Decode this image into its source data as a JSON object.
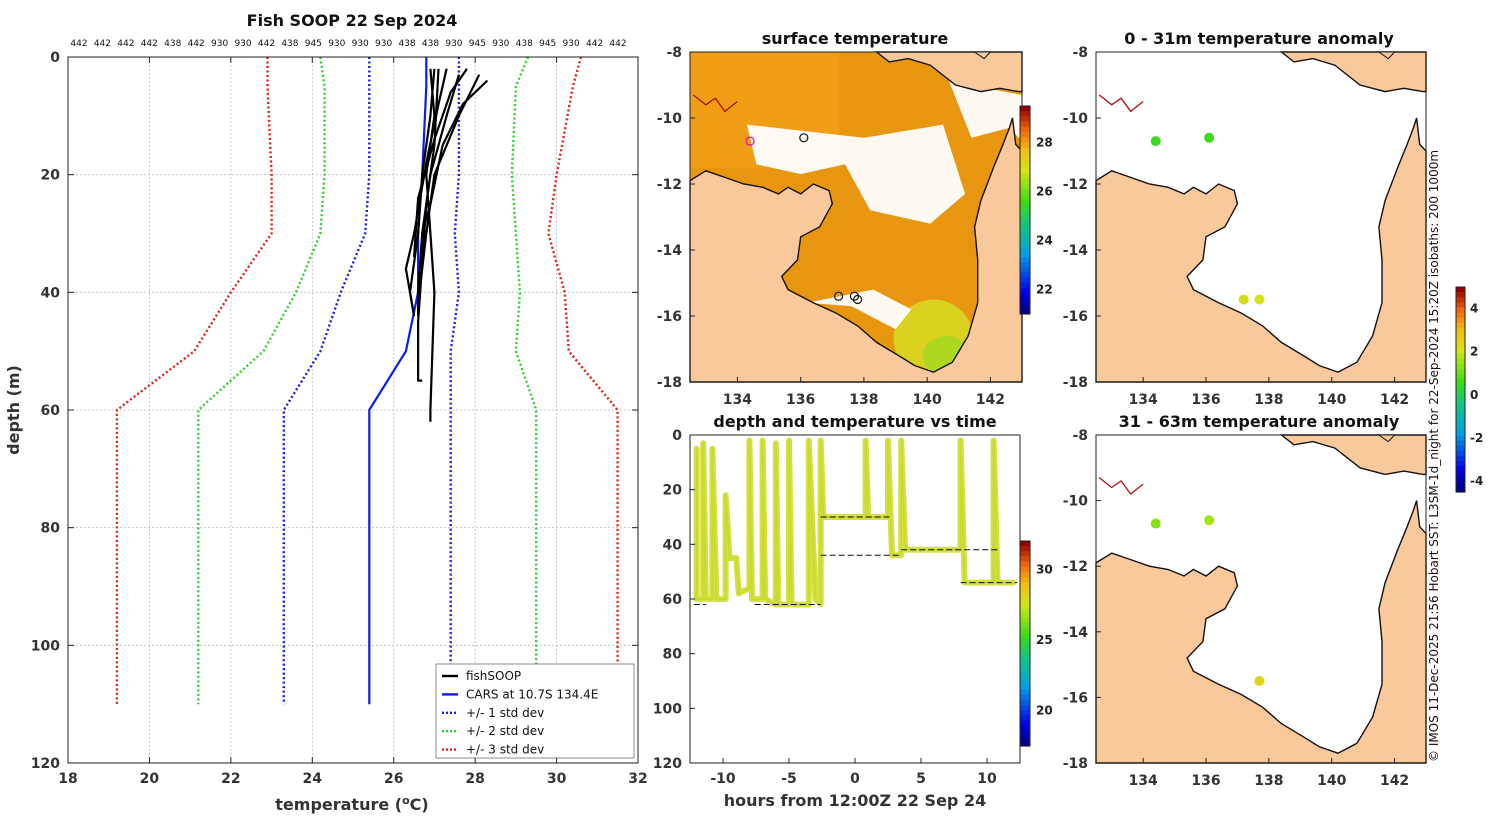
{
  "side_note": "© IMOS 11-Dec-2025 21:56 Hobart SST: L3SM-1d_night for 22-Sep-2024 15:20Z isobaths: 200  1000m",
  "colors": {
    "fish": "#000000",
    "cars": "#0a1eea",
    "std1": "#1a1ae0",
    "std2": "#28d428",
    "std3": "#e02010",
    "land": "#f9c89b",
    "grid": "#bbbbbb"
  },
  "chart_data": [
    {
      "id": "profile",
      "type": "line",
      "title": "Fish SOOP 22 Sep 2024",
      "xlabel": "temperature (",
      "xlabel_sup": "o",
      "xlabel_tail": "C)",
      "ylabel": "depth (m)",
      "xlim": [
        18,
        32
      ],
      "ylim": [
        0,
        120
      ],
      "y_reversed": true,
      "xticks": [
        18,
        20,
        22,
        24,
        26,
        28,
        30,
        32
      ],
      "yticks": [
        0,
        20,
        40,
        60,
        80,
        100,
        120
      ],
      "top_labels": [
        "442",
        "442",
        "442",
        "442",
        "438",
        "442",
        "930",
        "930",
        "442",
        "438",
        "945",
        "930",
        "930",
        "930",
        "438",
        "438",
        "930",
        "945",
        "930",
        "438",
        "945",
        "930",
        "442",
        "442"
      ],
      "legend": [
        {
          "label": "fishSOOP",
          "style": "fish"
        },
        {
          "label": "CARS at 10.7S 134.4E",
          "style": "cars"
        },
        {
          "label": "+/- 1 std dev",
          "style": "std1"
        },
        {
          "label": "+/- 2 std dev",
          "style": "std2"
        },
        {
          "label": "+/- 3 std dev",
          "style": "std3"
        }
      ],
      "series": [
        {
          "name": "CARS mean",
          "style": "cars",
          "points": [
            [
              26.8,
              0
            ],
            [
              26.8,
              5
            ],
            [
              26.7,
              20
            ],
            [
              26.6,
              30
            ],
            [
              26.6,
              40
            ],
            [
              26.3,
              50
            ],
            [
              25.4,
              60
            ],
            [
              25.4,
              110
            ]
          ]
        },
        {
          "name": "-1 std",
          "style": "std1",
          "points": [
            [
              25.4,
              0
            ],
            [
              25.4,
              20
            ],
            [
              25.3,
              30
            ],
            [
              24.7,
              40
            ],
            [
              24.2,
              50
            ],
            [
              23.3,
              60
            ],
            [
              23.3,
              110
            ]
          ]
        },
        {
          "name": "+1 std",
          "style": "std1",
          "points": [
            [
              27.6,
              0
            ],
            [
              27.6,
              20
            ],
            [
              27.5,
              30
            ],
            [
              27.6,
              40
            ],
            [
              27.4,
              50
            ],
            [
              27.4,
              60
            ],
            [
              27.4,
              110
            ]
          ]
        },
        {
          "name": "-2 std",
          "style": "std2",
          "points": [
            [
              24.2,
              0
            ],
            [
              24.3,
              5
            ],
            [
              24.3,
              20
            ],
            [
              24.2,
              30
            ],
            [
              23.6,
              40
            ],
            [
              22.8,
              50
            ],
            [
              21.2,
              60
            ],
            [
              21.2,
              110
            ]
          ]
        },
        {
          "name": "+2 std",
          "style": "std2",
          "points": [
            [
              29.3,
              0
            ],
            [
              29.0,
              5
            ],
            [
              28.9,
              20
            ],
            [
              29.0,
              30
            ],
            [
              29.1,
              40
            ],
            [
              29.0,
              50
            ],
            [
              29.5,
              60
            ],
            [
              29.5,
              110
            ]
          ]
        },
        {
          "name": "-3 std",
          "style": "std3",
          "points": [
            [
              22.9,
              0
            ],
            [
              22.9,
              5
            ],
            [
              23.0,
              20
            ],
            [
              23.0,
              30
            ],
            [
              22.0,
              40
            ],
            [
              21.1,
              50
            ],
            [
              19.2,
              60
            ],
            [
              19.2,
              110
            ]
          ]
        },
        {
          "name": "+3 std",
          "style": "std3",
          "points": [
            [
              30.6,
              0
            ],
            [
              30.4,
              5
            ],
            [
              30.0,
              20
            ],
            [
              29.8,
              30
            ],
            [
              30.2,
              40
            ],
            [
              30.3,
              50
            ],
            [
              31.5,
              60
            ],
            [
              31.5,
              110
            ]
          ]
        },
        {
          "name": "fishSOOP 1",
          "style": "fish",
          "points": [
            [
              27.0,
              2
            ],
            [
              26.9,
              10
            ],
            [
              26.7,
              20
            ],
            [
              26.6,
              30
            ],
            [
              26.4,
              40
            ],
            [
              26.5,
              44
            ]
          ]
        },
        {
          "name": "fishSOOP 2",
          "style": "fish",
          "points": [
            [
              27.6,
              3
            ],
            [
              27.3,
              10
            ],
            [
              26.9,
              20
            ],
            [
              26.7,
              30
            ],
            [
              26.6,
              40
            ],
            [
              26.6,
              44
            ]
          ]
        },
        {
          "name": "fishSOOP 3",
          "style": "fish",
          "points": [
            [
              28.1,
              3
            ],
            [
              27.6,
              10
            ],
            [
              27.0,
              20
            ],
            [
              26.8,
              30
            ],
            [
              26.6,
              42
            ]
          ]
        },
        {
          "name": "fishSOOP 4",
          "style": "fish",
          "points": [
            [
              27.3,
              2
            ],
            [
              27.1,
              8
            ],
            [
              26.8,
              18
            ],
            [
              26.5,
              30
            ],
            [
              26.3,
              36
            ],
            [
              26.5,
              44
            ]
          ]
        },
        {
          "name": "fishSOOP 5",
          "style": "fish",
          "points": [
            [
              26.9,
              2
            ],
            [
              27.0,
              10
            ],
            [
              26.8,
              20
            ],
            [
              26.9,
              30
            ],
            [
              27.0,
              40
            ],
            [
              26.9,
              60
            ],
            [
              26.9,
              62
            ]
          ]
        },
        {
          "name": "fishSOOP 6",
          "style": "fish",
          "points": [
            [
              27.1,
              2
            ],
            [
              27.0,
              15
            ],
            [
              26.8,
              25
            ],
            [
              26.7,
              35
            ],
            [
              26.6,
              45
            ],
            [
              26.6,
              55
            ],
            [
              26.7,
              55
            ]
          ]
        },
        {
          "name": "fishSOOP 7",
          "style": "fish",
          "points": [
            [
              28.3,
              4
            ],
            [
              27.7,
              8
            ],
            [
              27.2,
              15
            ],
            [
              26.9,
              25
            ],
            [
              26.7,
              30
            ]
          ]
        },
        {
          "name": "fishSOOP 8",
          "style": "fish",
          "points": [
            [
              27.8,
              2
            ],
            [
              27.4,
              6
            ],
            [
              27.0,
              14
            ],
            [
              26.6,
              24
            ],
            [
              26.5,
              34
            ]
          ]
        }
      ]
    },
    {
      "id": "sst_map",
      "type": "heatmap",
      "title": "surface temperature",
      "xticks": [
        134,
        136,
        138,
        140,
        142
      ],
      "yticks": [
        -8,
        -10,
        -12,
        -14,
        -16,
        -18
      ],
      "xlim": [
        132.5,
        143
      ],
      "ylim": [
        -18,
        -8
      ],
      "colorbar_ticks": [
        22,
        24,
        26,
        28
      ],
      "colorbar_range": [
        21,
        29.5
      ],
      "stations": [
        [
          134.4,
          -10.7
        ],
        [
          136.1,
          -10.6
        ],
        [
          137.2,
          -15.4
        ],
        [
          137.7,
          -15.4
        ],
        [
          137.8,
          -15.5
        ]
      ]
    },
    {
      "id": "anom_0_31",
      "type": "scatter",
      "title": "0 - 31m temperature anomaly",
      "xticks": [
        134,
        136,
        138,
        140,
        142
      ],
      "yticks": [
        -8,
        -10,
        -12,
        -14,
        -16,
        -18
      ],
      "xlim": [
        132.5,
        143
      ],
      "ylim": [
        -18,
        -8
      ],
      "points": [
        {
          "lon": 134.4,
          "lat": -10.7,
          "anomaly": 0.6
        },
        {
          "lon": 136.1,
          "lat": -10.6,
          "anomaly": 0.7
        },
        {
          "lon": 137.2,
          "lat": -15.5,
          "anomaly": 2.4
        },
        {
          "lon": 137.7,
          "lat": -15.5,
          "anomaly": 2.3
        }
      ]
    },
    {
      "id": "anom_31_63",
      "type": "scatter",
      "title": "31 - 63m temperature anomaly",
      "xticks": [
        134,
        136,
        138,
        140,
        142
      ],
      "yticks": [
        -8,
        -10,
        -12,
        -14,
        -16,
        -18
      ],
      "xlim": [
        132.5,
        143
      ],
      "ylim": [
        -18,
        -8
      ],
      "points": [
        {
          "lon": 134.4,
          "lat": -10.7,
          "anomaly": 1.4
        },
        {
          "lon": 136.1,
          "lat": -10.6,
          "anomaly": 1.7
        },
        {
          "lon": 137.7,
          "lat": -15.5,
          "anomaly": 2.6
        }
      ]
    },
    {
      "id": "anom_colorbar",
      "type": "colorbar",
      "ticks": [
        4,
        2,
        0,
        -2,
        -4
      ],
      "range": [
        -4.5,
        5
      ]
    },
    {
      "id": "depth_time",
      "type": "scatter",
      "title": "depth and temperature vs time",
      "xlabel": "hours from 12:00Z 22 Sep 24",
      "xlim": [
        -12.5,
        12.5
      ],
      "ylim": [
        0,
        120
      ],
      "y_reversed": true,
      "xticks": [
        -10,
        -5,
        0,
        5,
        10
      ],
      "yticks": [
        0,
        20,
        40,
        60,
        80,
        100,
        120
      ],
      "colorbar_ticks": [
        20,
        25,
        30
      ],
      "colorbar_range": [
        17.5,
        32
      ],
      "bottom_depths": [
        {
          "from": -12.2,
          "to": -11.3,
          "depth": 62
        },
        {
          "from": -7.6,
          "to": -2.6,
          "depth": 62
        },
        {
          "from": -2.6,
          "to": 2.6,
          "depth": 30
        },
        {
          "from": -2.6,
          "to": 3.5,
          "depth": 44
        },
        {
          "from": 3.5,
          "to": 10.8,
          "depth": 42
        },
        {
          "from": 8.0,
          "to": 12.3,
          "depth": 54
        }
      ],
      "trace": [
        [
          -12.0,
          5
        ],
        [
          -12.0,
          60
        ],
        [
          -11.5,
          60
        ],
        [
          -11.5,
          3
        ],
        [
          -11.3,
          60
        ],
        [
          -10.8,
          60
        ],
        [
          -10.8,
          5
        ],
        [
          -10.5,
          60
        ],
        [
          -9.8,
          60
        ],
        [
          -9.8,
          22
        ],
        [
          -9.5,
          45
        ],
        [
          -9.0,
          45
        ],
        [
          -8.8,
          58
        ],
        [
          -8.0,
          56
        ],
        [
          -8.0,
          2
        ],
        [
          -7.8,
          60
        ],
        [
          -7.0,
          60
        ],
        [
          -7.0,
          2
        ],
        [
          -6.8,
          60
        ],
        [
          -6.0,
          62
        ],
        [
          -6.0,
          3
        ],
        [
          -5.8,
          62
        ],
        [
          -5.0,
          62
        ],
        [
          -5.0,
          2
        ],
        [
          -4.8,
          62
        ],
        [
          -3.5,
          62
        ],
        [
          -3.5,
          2
        ],
        [
          -3.0,
          60
        ],
        [
          -2.6,
          62
        ],
        [
          -2.6,
          2
        ],
        [
          -2.4,
          30
        ],
        [
          0.8,
          30
        ],
        [
          0.8,
          2
        ],
        [
          1.0,
          30
        ],
        [
          2.5,
          30
        ],
        [
          2.5,
          2
        ],
        [
          2.8,
          44
        ],
        [
          3.5,
          44
        ],
        [
          3.5,
          2
        ],
        [
          3.8,
          42
        ],
        [
          8.0,
          42
        ],
        [
          8.0,
          2
        ],
        [
          8.3,
          54
        ],
        [
          10.5,
          54
        ],
        [
          10.5,
          2
        ],
        [
          10.8,
          54
        ],
        [
          12.0,
          54
        ]
      ]
    }
  ]
}
